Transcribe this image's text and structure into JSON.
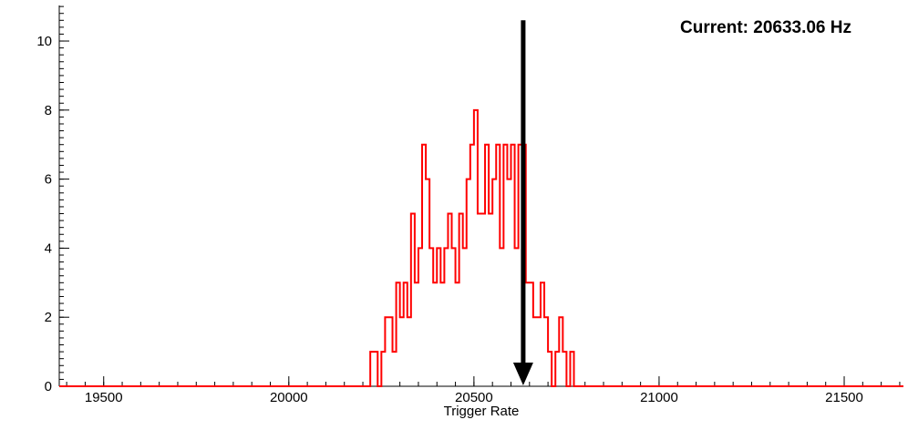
{
  "annotation": {
    "text": "Current: 20633.06 Hz",
    "color": "#000000"
  },
  "chart_data": {
    "type": "histogram-step",
    "title": "",
    "xlabel": "Trigger Rate",
    "ylabel": "",
    "xlim": [
      19380,
      21660
    ],
    "ylim": [
      0,
      11.03
    ],
    "x_major_ticks": [
      19500,
      20000,
      20500,
      21000,
      21500
    ],
    "x_minor_step": 50,
    "y_major_ticks": [
      0,
      2,
      4,
      6,
      8,
      10
    ],
    "y_minor_step": 0.2,
    "grid": false,
    "legend": "none",
    "line_color": "#ff0000",
    "axis_color": "#000000",
    "bin_start": 20220,
    "bin_width": 10,
    "bin_counts": [
      1,
      1,
      0,
      1,
      2,
      2,
      1,
      3,
      2,
      3,
      2,
      5,
      3,
      4,
      7,
      6,
      4,
      3,
      4,
      3,
      4,
      5,
      4,
      3,
      5,
      4,
      6,
      7,
      8,
      5,
      5,
      7,
      5,
      6,
      7,
      4,
      7,
      6,
      7,
      4,
      7,
      7,
      3,
      3,
      2,
      2,
      3,
      2,
      1,
      0,
      1,
      2,
      1,
      0,
      1,
      0
    ],
    "arrow": {
      "x": 20633.06,
      "top": 10.6,
      "color": "#000000"
    }
  }
}
